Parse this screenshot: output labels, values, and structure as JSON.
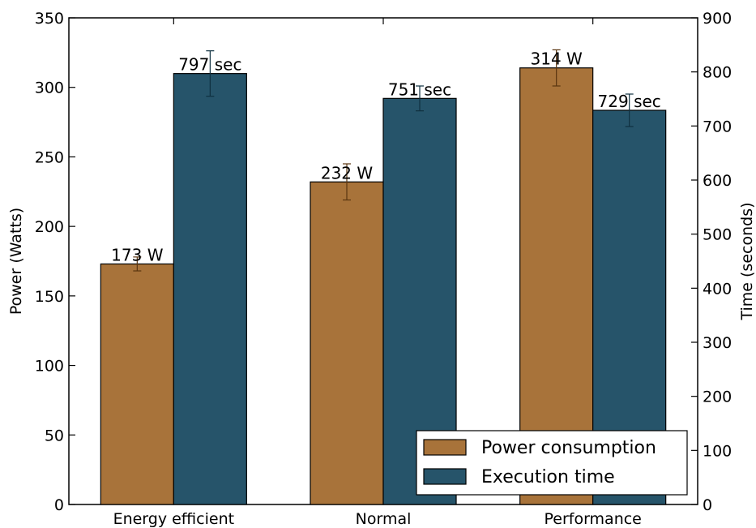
{
  "chart_data": {
    "type": "bar",
    "categories": [
      "Energy efficient",
      "Normal",
      "Performance"
    ],
    "ylabel_left": "Power (Watts)",
    "ylabel_right": "Time (seconds)",
    "ylim_left": [
      0,
      350
    ],
    "ylim_right": [
      0,
      900
    ],
    "yticks_left": [
      0,
      50,
      100,
      150,
      200,
      250,
      300,
      350
    ],
    "yticks_right": [
      0,
      100,
      200,
      300,
      400,
      500,
      600,
      700,
      800,
      900
    ],
    "legend_position": "lower-right",
    "grid": false,
    "series": [
      {
        "name": "Power consumption",
        "axis": "left",
        "color": "#a8733a",
        "error_color": "#5a3510",
        "values": [
          173,
          232,
          314
        ],
        "errors": [
          5,
          13,
          13
        ],
        "labels": [
          "173 W",
          "232 W",
          "314 W"
        ]
      },
      {
        "name": "Execution time",
        "axis": "right",
        "color": "#26546a",
        "error_color": "#0f3040",
        "values": [
          797,
          751,
          729
        ],
        "errors": [
          42,
          23,
          30
        ],
        "labels": [
          "797 sec",
          "751 sec",
          "729 sec"
        ]
      }
    ]
  }
}
